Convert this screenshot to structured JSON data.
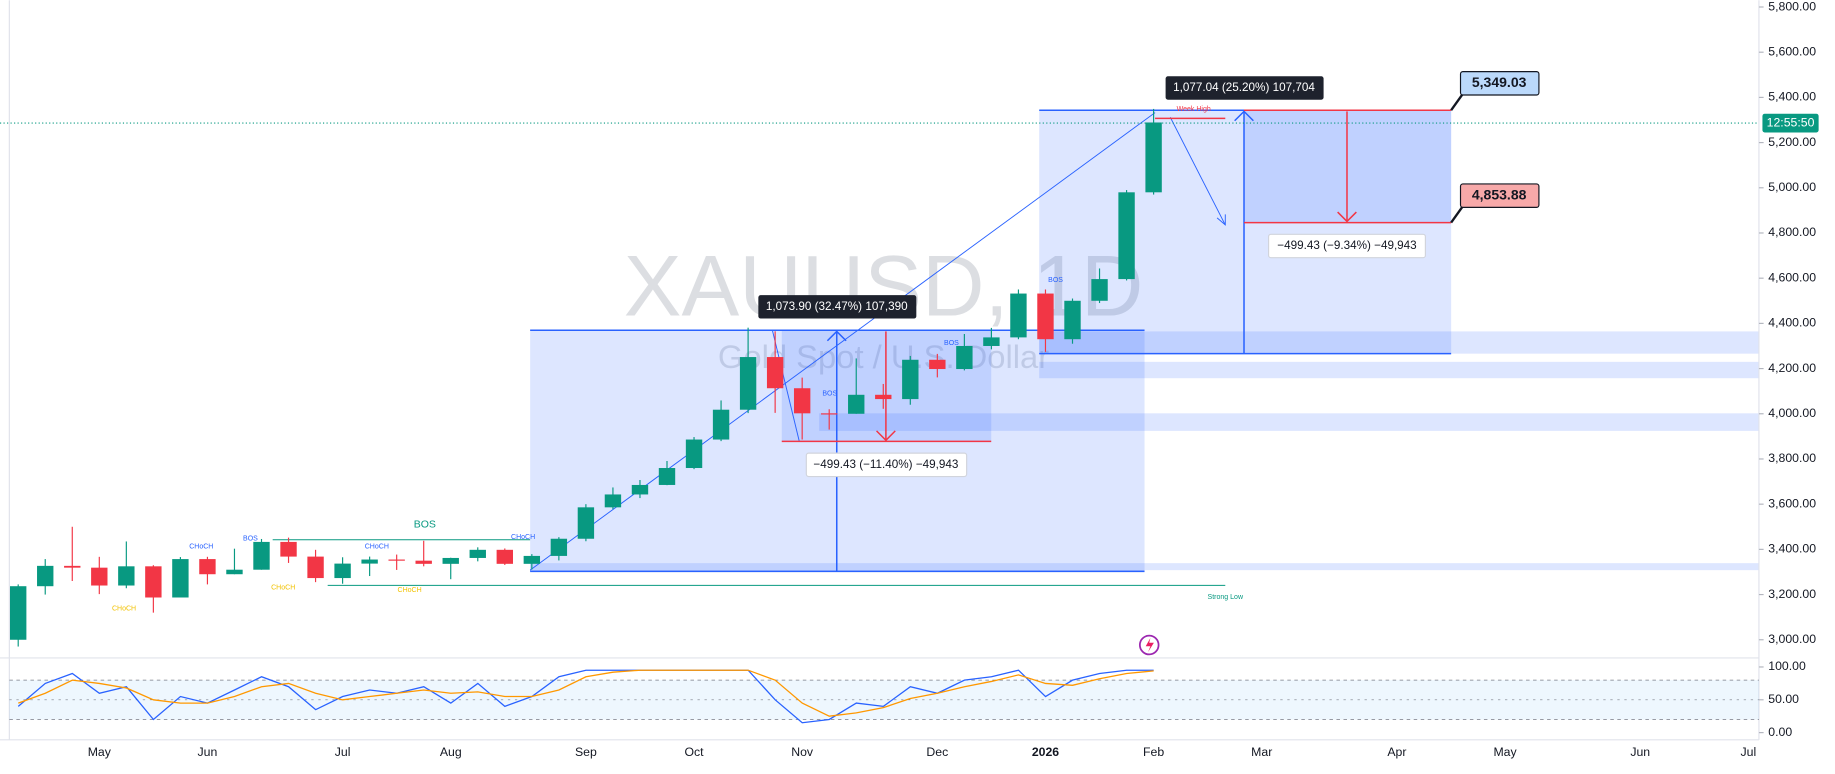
{
  "chart_data": [
    {
      "type": "candlestick",
      "watermark": "XAUUSD, 1D",
      "subtitle": "Gold Spot / U.S. Dollar",
      "categories": [
        null,
        null,
        null,
        "May",
        null,
        null,
        null,
        "Jun",
        null,
        null,
        null,
        null,
        "Jul",
        null,
        null,
        null,
        "Aug",
        null,
        null,
        null,
        null,
        "Sep",
        null,
        null,
        null,
        "Oct",
        null,
        null,
        null,
        "Nov",
        null,
        null,
        null,
        null,
        "Dec",
        null,
        null,
        null,
        "2026",
        null,
        null,
        null,
        "Feb",
        null,
        null,
        null,
        "Mar",
        null,
        null,
        null,
        null,
        "Apr",
        null,
        null,
        null,
        "May",
        null,
        null,
        null,
        null,
        "Jun",
        null,
        null,
        null,
        "Jul"
      ],
      "open": [
        3000,
        3237,
        3327,
        3319,
        3240,
        3325,
        3187,
        3357,
        3290,
        3310,
        3433,
        3368,
        3273,
        3337,
        3355,
        3350,
        3336,
        3362,
        3398,
        3336,
        3371,
        3447,
        3586,
        3643,
        3685,
        3760,
        3886,
        4018,
        4251,
        4113,
        4002,
        4000,
        4084,
        4065,
        4239,
        4198,
        4300,
        4338,
        4532,
        4330,
        4500,
        4596,
        4980,
        null,
        null,
        null,
        null,
        null,
        null,
        null,
        null,
        null,
        null,
        null,
        null,
        null,
        null,
        null,
        null,
        null,
        null,
        null,
        null,
        null,
        null
      ],
      "high": [
        3245,
        3357,
        3500,
        3367,
        3435,
        3330,
        3366,
        3367,
        3403,
        3446,
        3452,
        3398,
        3365,
        3368,
        3377,
        3438,
        3363,
        3409,
        3404,
        3379,
        3454,
        3600,
        3674,
        3707,
        3791,
        3897,
        4059,
        4381,
        4365,
        4160,
        4020,
        4245,
        4132,
        4256,
        4265,
        4353,
        4380,
        4550,
        4550,
        4510,
        4643,
        4990,
        5349,
        null,
        null,
        null,
        null,
        null,
        null,
        null,
        null,
        null,
        null,
        null,
        null,
        null,
        null,
        null,
        null,
        null,
        null,
        null,
        null,
        null,
        null
      ],
      "low": [
        2970,
        3200,
        3260,
        3202,
        3228,
        3120,
        3187,
        3245,
        3290,
        3310,
        3340,
        3255,
        3248,
        3282,
        3309,
        3325,
        3268,
        3347,
        3331,
        3311,
        3351,
        3436,
        3578,
        3627,
        3684,
        3755,
        3879,
        4003,
        4004,
        3886,
        3930,
        4000,
        4022,
        4040,
        4161,
        4192,
        4285,
        4330,
        4274,
        4310,
        4490,
        4590,
        4970,
        null,
        null,
        null,
        null,
        null,
        null,
        null,
        null,
        null,
        null,
        null,
        null,
        null,
        null,
        null,
        null,
        null,
        null,
        null,
        null,
        null,
        null
      ],
      "close": [
        3237,
        3327,
        3319,
        3240,
        3325,
        3187,
        3357,
        3290,
        3310,
        3433,
        3368,
        3273,
        3337,
        3355,
        3350,
        3336,
        3362,
        3398,
        3336,
        3371,
        3447,
        3586,
        3643,
        3685,
        3760,
        3886,
        4018,
        4251,
        4113,
        4002,
        4000,
        4084,
        4065,
        4239,
        4198,
        4300,
        4338,
        4532,
        4330,
        4500,
        4596,
        4980,
        5289,
        null,
        null,
        null,
        null,
        null,
        null,
        null,
        null,
        null,
        null,
        null,
        null,
        null,
        null,
        null,
        null,
        null,
        null,
        null,
        null,
        null,
        null
      ],
      "up_color": "#089981",
      "down_color": "#f23645",
      "ylim": [
        2930,
        5830
      ],
      "yticks": [
        {
          "value": 3000,
          "label": "3,000.00"
        },
        {
          "value": 3200,
          "label": "3,200.00"
        },
        {
          "value": 3400,
          "label": "3,400.00"
        },
        {
          "value": 3600,
          "label": "3,600.00"
        },
        {
          "value": 3800,
          "label": "3,800.00"
        },
        {
          "value": 4000,
          "label": "4,000.00"
        },
        {
          "value": 4200,
          "label": "4,200.00"
        },
        {
          "value": 4400,
          "label": "4,400.00"
        },
        {
          "value": 4600,
          "label": "4,600.00"
        },
        {
          "value": 4800,
          "label": "4,800.00"
        },
        {
          "value": 5000,
          "label": "5,000.00"
        },
        {
          "value": 5200,
          "label": "5,200.00"
        },
        {
          "value": 5400,
          "label": "5,400.00"
        },
        {
          "value": 5600,
          "label": "5,600.00"
        },
        {
          "value": 5800,
          "label": "5,800.00"
        }
      ],
      "grid": false,
      "current_time": "12:55:50",
      "measurements": [
        "1,073.90 (32.47%) 107,390",
        "−499.43 (−11.40%) −49,943",
        "1,077.04 (25.20%) 107,704",
        "−499.43 (−9.34%) −49,943"
      ],
      "price_tags": [
        "5,349.03",
        "4,853.88"
      ],
      "structure_labels": [
        "CHoCH",
        "BOS",
        "CHoCH",
        "BOS",
        "CHoCH",
        "CHoCH",
        "CHoCH",
        "CHoCH",
        "BOS",
        "BOS",
        "BOS",
        "Strong Low",
        "Week High"
      ]
    },
    {
      "type": "line",
      "series": [
        {
          "color": "#2962ff",
          "values": [
            40,
            75,
            90,
            60,
            70,
            20,
            55,
            45,
            65,
            85,
            70,
            35,
            55,
            65,
            60,
            70,
            45,
            75,
            40,
            55,
            85,
            95,
            95,
            95,
            95,
            95,
            95,
            95,
            50,
            15,
            20,
            45,
            40,
            70,
            60,
            80,
            85,
            95,
            55,
            80,
            90,
            95,
            95,
            null,
            null,
            null,
            null,
            null,
            null,
            null,
            null,
            null,
            null,
            null,
            null,
            null,
            null,
            null,
            null,
            null,
            null,
            null,
            null,
            null,
            null
          ]
        },
        {
          "color": "#ff9800",
          "values": [
            45,
            60,
            80,
            75,
            68,
            50,
            45,
            45,
            55,
            70,
            75,
            60,
            50,
            55,
            60,
            65,
            60,
            62,
            55,
            55,
            65,
            85,
            92,
            95,
            95,
            95,
            95,
            95,
            80,
            45,
            25,
            30,
            38,
            52,
            60,
            70,
            78,
            88,
            75,
            72,
            82,
            90,
            94,
            null,
            null,
            null,
            null,
            null,
            null,
            null,
            null,
            null,
            null,
            null,
            null,
            null,
            null,
            null,
            null,
            null,
            null,
            null,
            null,
            null,
            null
          ]
        }
      ],
      "bands": [
        20,
        80
      ],
      "ylim": [
        -11,
        112
      ],
      "yticks": [
        {
          "value": 0,
          "label": "0.00"
        },
        {
          "value": 50,
          "label": "50.00"
        },
        {
          "value": 100,
          "label": "100.00"
        }
      ]
    }
  ]
}
